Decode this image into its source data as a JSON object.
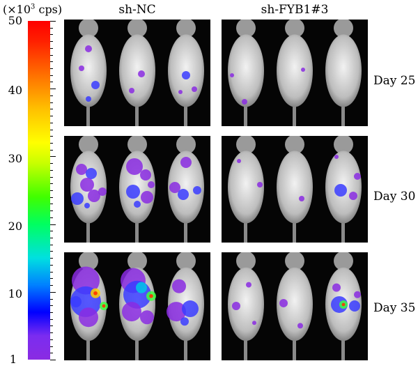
{
  "scale": {
    "unit_prefix": "(×10",
    "unit_exp": "3",
    "unit_suffix": " cps)",
    "labels": [
      "50",
      "40",
      "30",
      "20",
      "10",
      "1"
    ],
    "colors": [
      "#8a2be2",
      "#0000ff",
      "#00e0e0",
      "#40ff00",
      "#ffff00",
      "#ff7000",
      "#ff0000"
    ]
  },
  "groups": [
    "sh-NC",
    "sh-FYB1#3"
  ],
  "days": [
    "Day 25",
    "Day 30",
    "Day 35"
  ]
}
